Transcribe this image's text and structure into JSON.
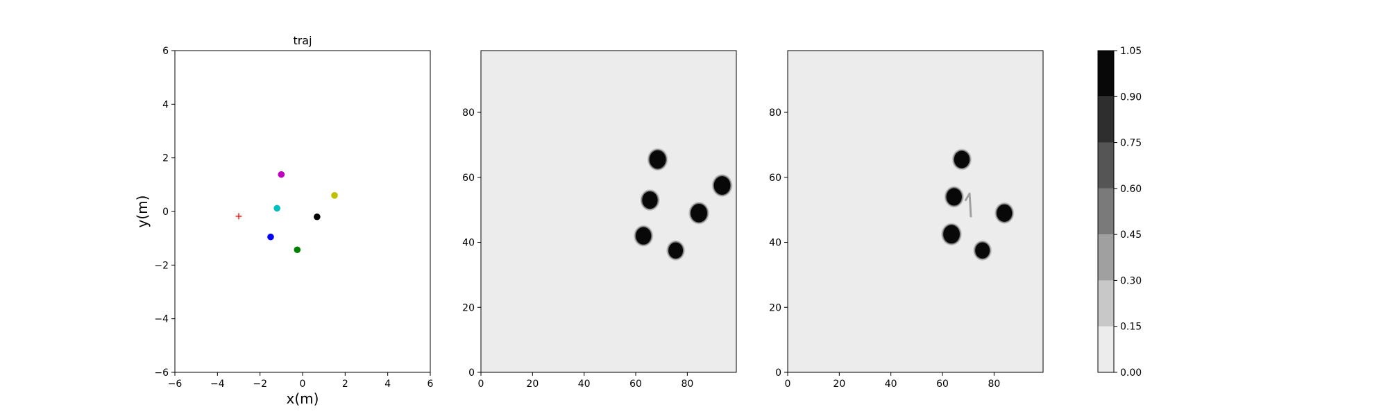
{
  "chart_data": [
    {
      "type": "scatter",
      "title": "traj",
      "xlabel": "x(m)",
      "ylabel": "y(m)",
      "xlim": [
        -6,
        6
      ],
      "ylim": [
        -6,
        6
      ],
      "xticks": [
        -6,
        -4,
        -2,
        0,
        2,
        4,
        6
      ],
      "yticks": [
        -6,
        -4,
        -2,
        0,
        2,
        4,
        6
      ],
      "grid": false,
      "points": [
        {
          "x": -3.0,
          "y": -0.18,
          "color": "#ff0000",
          "marker": "plus"
        },
        {
          "x": -1.0,
          "y": 1.38,
          "color": "#bf00bf",
          "marker": "circle"
        },
        {
          "x": 1.5,
          "y": 0.6,
          "color": "#bfbf00",
          "marker": "circle"
        },
        {
          "x": -1.2,
          "y": 0.12,
          "color": "#00bfbf",
          "marker": "circle"
        },
        {
          "x": 0.68,
          "y": -0.2,
          "color": "#000000",
          "marker": "circle"
        },
        {
          "x": -1.5,
          "y": -0.95,
          "color": "#0000ff",
          "marker": "circle"
        },
        {
          "x": -0.25,
          "y": -1.43,
          "color": "#008000",
          "marker": "circle"
        }
      ]
    },
    {
      "type": "heatmap",
      "title": "",
      "xlim": [
        0,
        99
      ],
      "ylim": [
        0,
        99
      ],
      "xticks": [
        0,
        20,
        40,
        60,
        80
      ],
      "yticks": [
        0,
        20,
        40,
        60,
        80
      ],
      "background_level": 0.07,
      "blobs": [
        {
          "x": 68.5,
          "y": 65.5,
          "r": 3.2,
          "level": 1.0
        },
        {
          "x": 65.5,
          "y": 53,
          "r": 3.0,
          "level": 1.0
        },
        {
          "x": 93.5,
          "y": 57.5,
          "r": 3.2,
          "level": 1.0
        },
        {
          "x": 84.5,
          "y": 49,
          "r": 3.2,
          "level": 1.0
        },
        {
          "x": 63,
          "y": 42,
          "r": 3.0,
          "level": 1.0
        },
        {
          "x": 75.5,
          "y": 37.5,
          "r": 2.8,
          "level": 1.0
        }
      ]
    },
    {
      "type": "heatmap",
      "title": "",
      "xlim": [
        0,
        99
      ],
      "ylim": [
        0,
        99
      ],
      "xticks": [
        0,
        20,
        40,
        60,
        80
      ],
      "yticks": [
        0,
        20,
        40,
        60,
        80
      ],
      "background_level": 0.07,
      "blobs": [
        {
          "x": 67.5,
          "y": 65.5,
          "r": 3.0,
          "level": 1.0
        },
        {
          "x": 64.5,
          "y": 54,
          "r": 3.0,
          "level": 1.0
        },
        {
          "x": 84,
          "y": 49,
          "r": 3.0,
          "level": 1.0
        },
        {
          "x": 63.5,
          "y": 42.5,
          "r": 3.2,
          "level": 1.0
        },
        {
          "x": 75.5,
          "y": 37.5,
          "r": 2.8,
          "level": 1.0
        }
      ],
      "traces": [
        {
          "points": [
            [
              69,
              53
            ],
            [
              70.5,
              55
            ],
            [
              70.8,
              51
            ],
            [
              71,
              48
            ]
          ],
          "level": 0.3
        }
      ]
    }
  ],
  "colorbar": {
    "levels": [
      0.0,
      0.15,
      0.3,
      0.45,
      0.6,
      0.75,
      0.9,
      1.05
    ],
    "tick_labels": [
      "0.00",
      "0.15",
      "0.30",
      "0.45",
      "0.60",
      "0.75",
      "0.90",
      "1.05"
    ],
    "colors": [
      "#ececec",
      "#c8c8c8",
      "#a0a0a0",
      "#7a7a7a",
      "#555555",
      "#2e2e2e",
      "#080808"
    ]
  }
}
